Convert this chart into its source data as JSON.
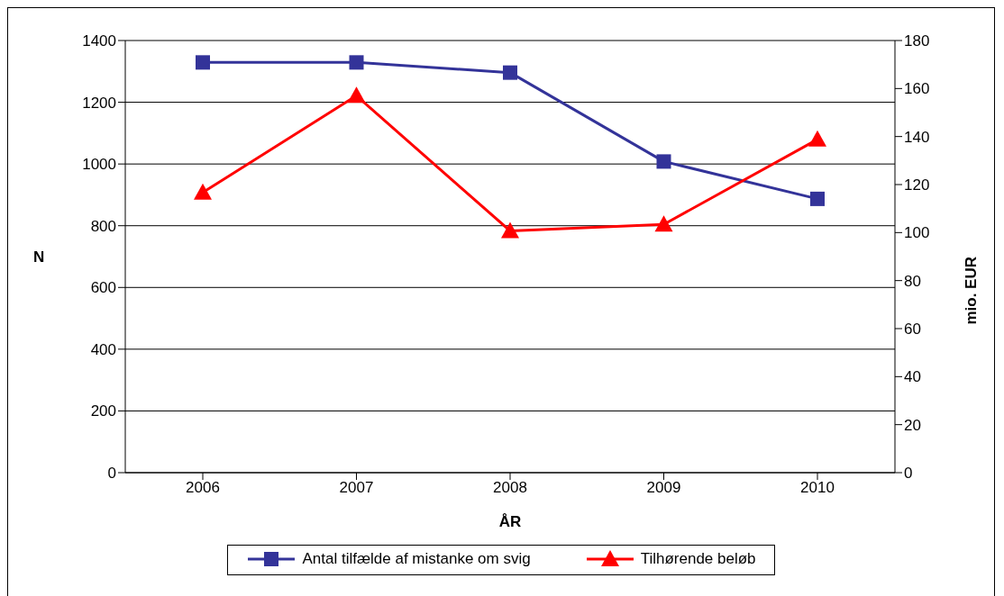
{
  "chart_data": {
    "type": "line",
    "xlabel": "ÅR",
    "ylabel": "N",
    "y2label": "mio. EUR",
    "categories": [
      "2006",
      "2007",
      "2008",
      "2009",
      "2010"
    ],
    "series": [
      {
        "name": "Antal tilfælde af mistanke om svig",
        "color": "#333399",
        "marker": "square",
        "values": [
          1329,
          1329,
          1296,
          1008,
          887
        ]
      },
      {
        "name": "Tilhørende beløb",
        "color": "#ff0000",
        "marker": "triangle",
        "axis": "y2",
        "values": [
          116.7,
          157,
          100.7,
          103.4,
          138.8
        ]
      }
    ],
    "ylim": [
      0,
      1400
    ],
    "yticks": [
      0,
      200,
      400,
      600,
      800,
      1000,
      1200,
      1400
    ],
    "y2lim": [
      0,
      180
    ],
    "y2ticks": [
      0,
      20,
      40,
      60,
      80,
      100,
      120,
      140,
      160,
      180
    ],
    "grid": "y",
    "legend": "bottom",
    "line_style": "solid"
  }
}
